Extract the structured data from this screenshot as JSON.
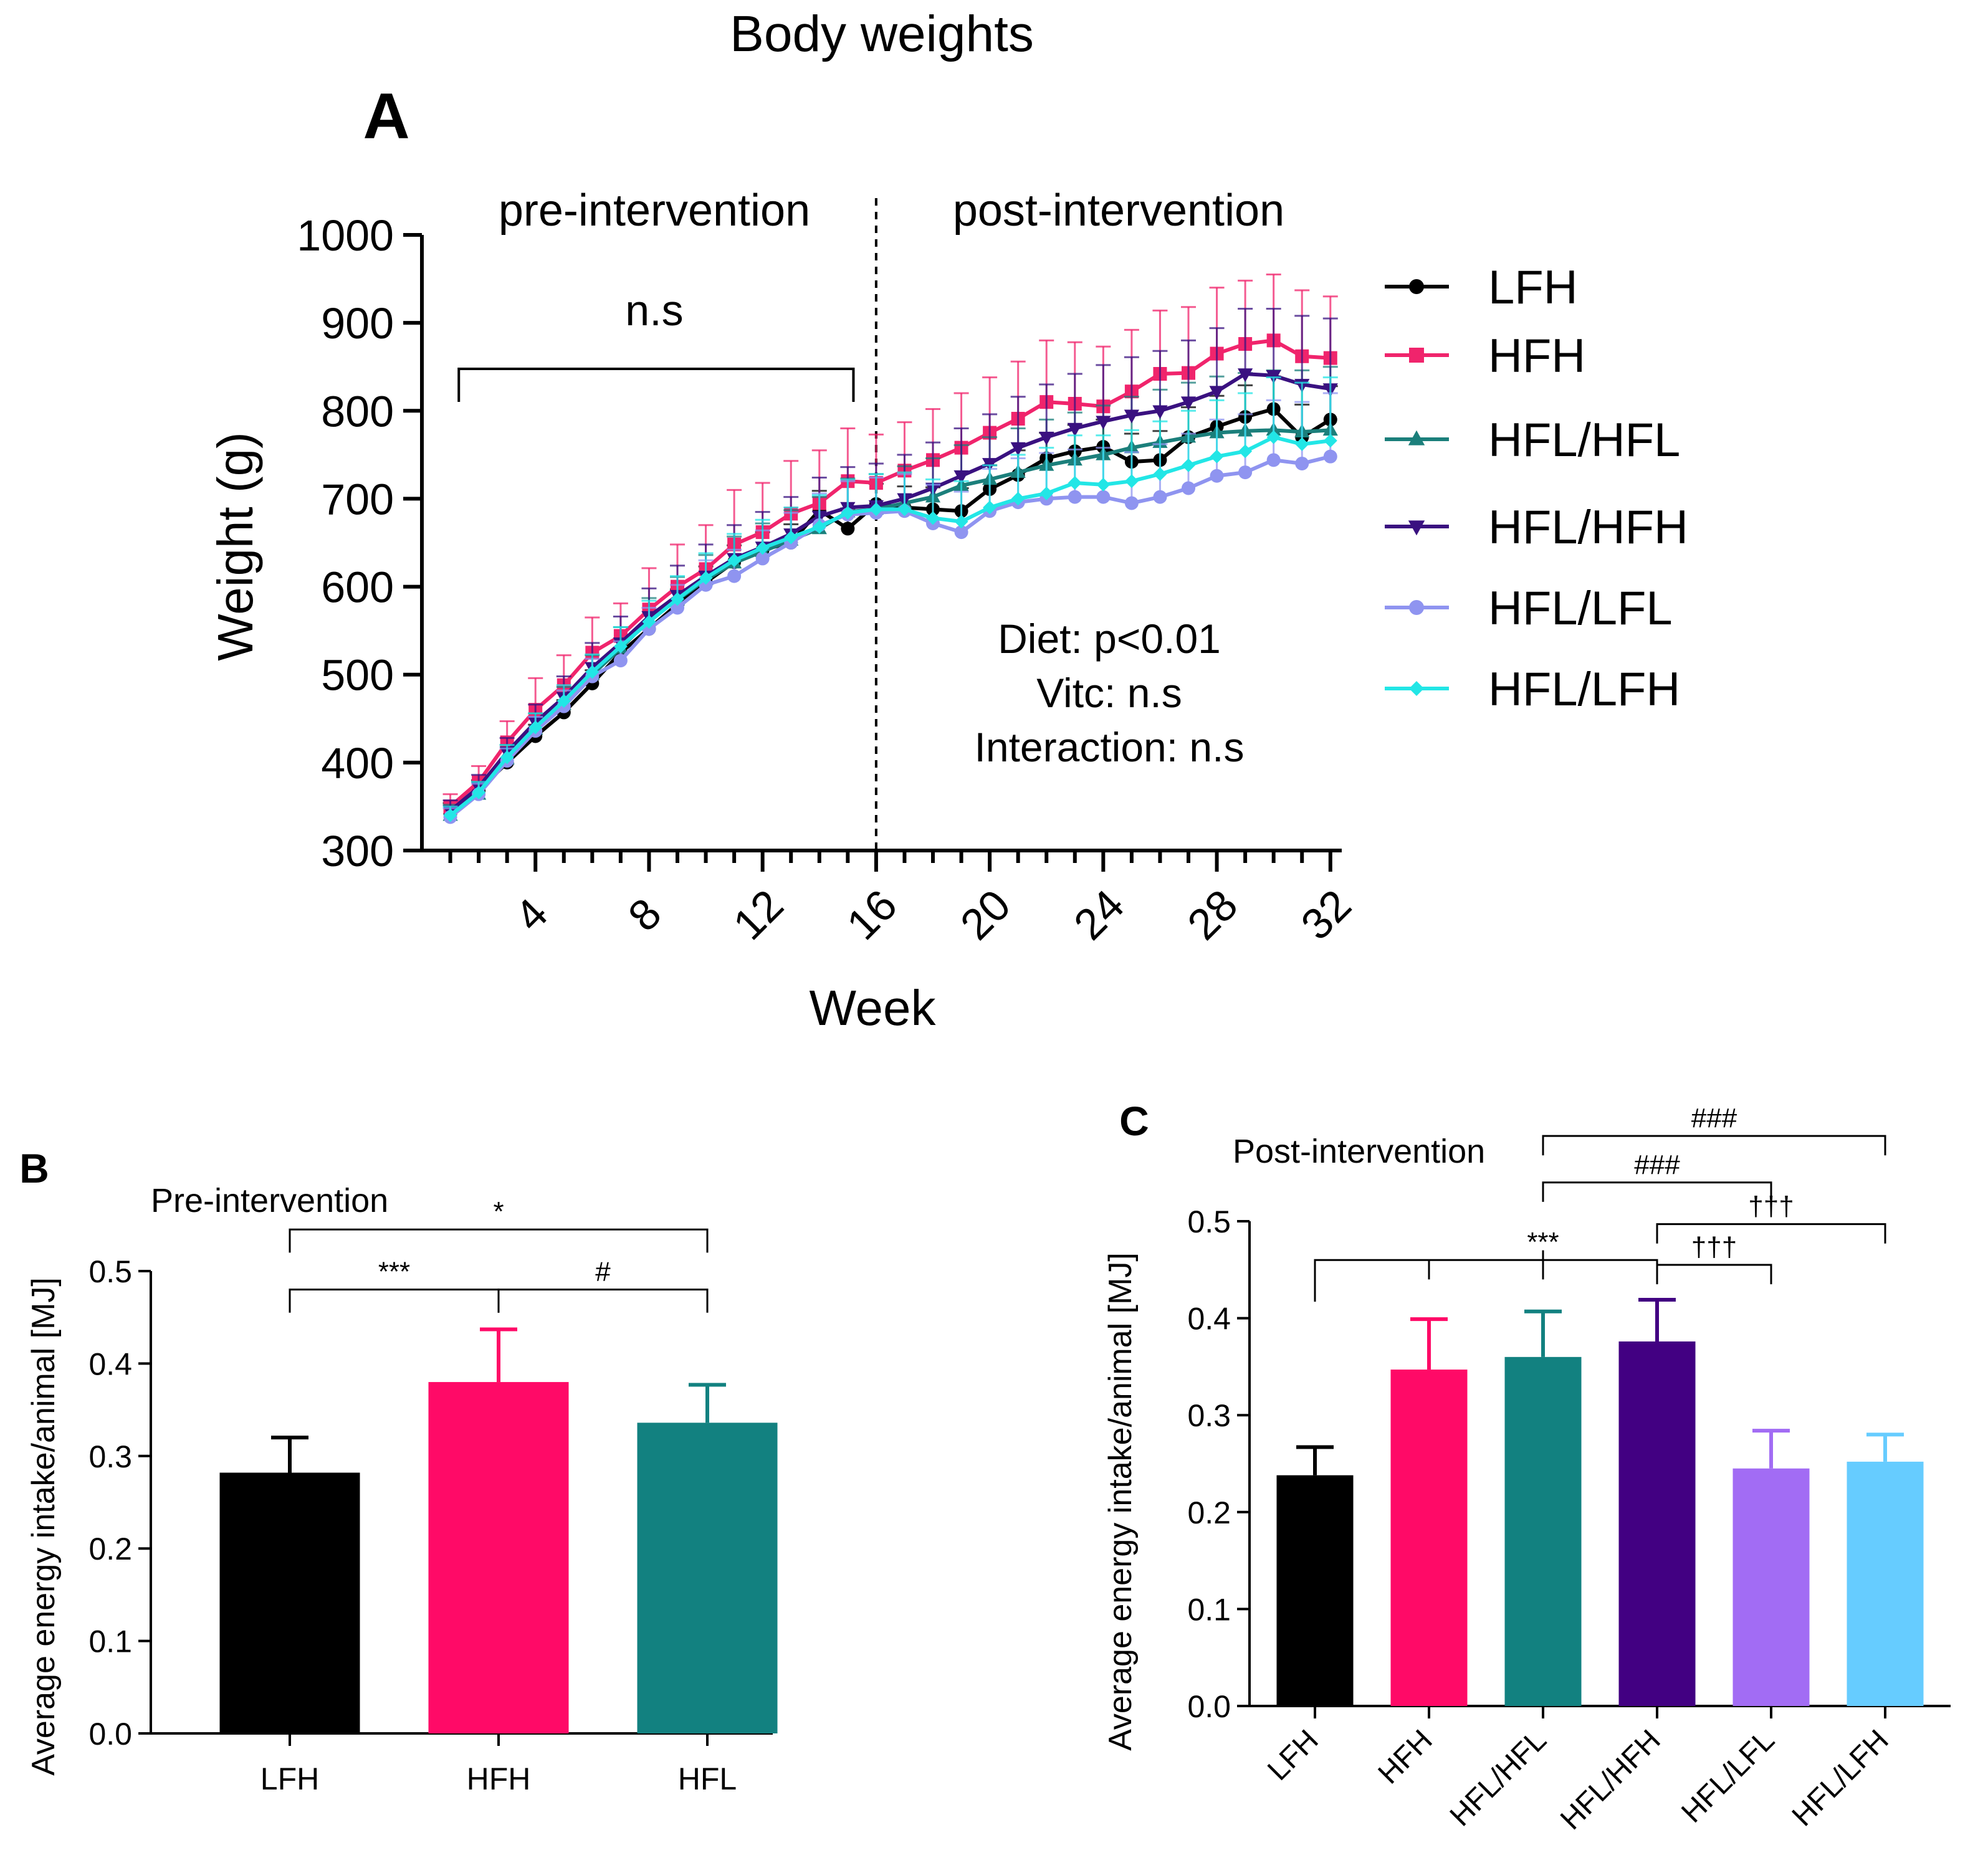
{
  "figure": {
    "title": "Body weights",
    "colors": {
      "LFH": "#000000",
      "HFH": "#F0246C",
      "HFL/HFL": "#1B7F7B",
      "HFL/HFH": "#3A1180",
      "HFL/LFL": "#8F94F0",
      "HFL/LFH": "#22E6E6"
    }
  },
  "chart_data": [
    {
      "id": "A",
      "panel_label": "A",
      "type": "line",
      "title": "Body weights",
      "xlabel": "Week",
      "ylabel": "Weight (g)",
      "xlim": [
        0,
        32.4
      ],
      "ylim": [
        300,
        1000
      ],
      "xticks": [
        4,
        8,
        12,
        16,
        20,
        24,
        28,
        32
      ],
      "yticks": [
        300,
        400,
        500,
        600,
        700,
        800,
        900,
        1000
      ],
      "divider_week": 16,
      "region_labels": [
        "pre-intervention",
        "post-intervention"
      ],
      "bracket_label": "n.s",
      "bracket_weeks": [
        1.3,
        15.2
      ],
      "stats_lines": [
        "Diet: p<0.01",
        "Vitc: n.s",
        "Interaction: n.s"
      ],
      "x": [
        1,
        2,
        3,
        4,
        5,
        6,
        7,
        8,
        9,
        10,
        11,
        12,
        13,
        14,
        15,
        16,
        17,
        18,
        19,
        20,
        21,
        22,
        23,
        24,
        25,
        26,
        27,
        28,
        29,
        30,
        31,
        32
      ],
      "series": [
        {
          "name": "LFH",
          "marker": "circle",
          "values": [
            342,
            368,
            400,
            430,
            457,
            490,
            525,
            552,
            580,
            605,
            628,
            642,
            650,
            687,
            666,
            694,
            690,
            688,
            686,
            711,
            727,
            746,
            754,
            759,
            742,
            744,
            770,
            782,
            793,
            802,
            770,
            790
          ],
          "errors": [
            12,
            12,
            13,
            13,
            14,
            15,
            15,
            16,
            17,
            18,
            19,
            20,
            21,
            22,
            23,
            23,
            24,
            25,
            26,
            27,
            28,
            29,
            30,
            31,
            32,
            33,
            34,
            35,
            36,
            37,
            37,
            38
          ]
        },
        {
          "name": "HFH",
          "marker": "square",
          "values": [
            350,
            378,
            423,
            460,
            488,
            525,
            544,
            574,
            600,
            620,
            648,
            662,
            683,
            695,
            720,
            718,
            732,
            744,
            758,
            775,
            791,
            810,
            808,
            805,
            822,
            842,
            843,
            865,
            876,
            880,
            862,
            860
          ],
          "errors": [
            14,
            18,
            24,
            36,
            34,
            40,
            37,
            47,
            48,
            50,
            62,
            56,
            60,
            60,
            60,
            55,
            55,
            58,
            62,
            63,
            65,
            70,
            70,
            68,
            70,
            72,
            75,
            75,
            72,
            75,
            75,
            70
          ]
        },
        {
          "name": "HFL/HFL",
          "marker": "triangle-up",
          "values": [
            340,
            364,
            404,
            438,
            466,
            500,
            530,
            562,
            585,
            608,
            627,
            640,
            653,
            666,
            685,
            688,
            695,
            702,
            715,
            722,
            730,
            738,
            744,
            750,
            758,
            764,
            770,
            775,
            777,
            778,
            776,
            778
          ],
          "errors": [
            12,
            14,
            16,
            18,
            20,
            22,
            24,
            25,
            26,
            28,
            30,
            32,
            34,
            36,
            38,
            40,
            42,
            44,
            46,
            48,
            50,
            52,
            54,
            56,
            58,
            60,
            62,
            64,
            66,
            68,
            70,
            72
          ]
        },
        {
          "name": "HFL/HFH",
          "marker": "triangle-down",
          "values": [
            345,
            372,
            412,
            446,
            474,
            508,
            536,
            566,
            590,
            612,
            632,
            645,
            660,
            680,
            690,
            692,
            700,
            712,
            726,
            740,
            758,
            770,
            780,
            788,
            795,
            800,
            810,
            822,
            842,
            840,
            830,
            825
          ],
          "errors": [
            12,
            14,
            16,
            20,
            24,
            28,
            30,
            32,
            34,
            36,
            38,
            40,
            42,
            44,
            46,
            48,
            50,
            52,
            54,
            56,
            58,
            60,
            62,
            64,
            66,
            68,
            70,
            72,
            74,
            76,
            78,
            80
          ]
        },
        {
          "name": "HFL/LFL",
          "marker": "circle",
          "values": [
            338,
            364,
            402,
            436,
            464,
            498,
            516,
            552,
            576,
            602,
            612,
            632,
            650,
            670,
            682,
            684,
            686,
            672,
            662,
            686,
            696,
            700,
            702,
            702,
            695,
            702,
            712,
            726,
            730,
            744,
            740,
            748
          ],
          "errors": [
            10,
            12,
            14,
            16,
            18,
            20,
            22,
            24,
            26,
            28,
            30,
            32,
            34,
            36,
            38,
            40,
            42,
            44,
            46,
            48,
            50,
            52,
            54,
            56,
            58,
            60,
            62,
            64,
            66,
            68,
            70,
            72
          ]
        },
        {
          "name": "HFL/LFH",
          "marker": "diamond",
          "values": [
            340,
            366,
            406,
            440,
            470,
            503,
            532,
            560,
            586,
            610,
            630,
            644,
            656,
            668,
            684,
            688,
            688,
            678,
            674,
            690,
            700,
            706,
            718,
            716,
            720,
            728,
            738,
            748,
            754,
            770,
            762,
            766
          ],
          "errors": [
            10,
            12,
            14,
            16,
            18,
            20,
            22,
            24,
            26,
            28,
            30,
            32,
            34,
            36,
            38,
            40,
            42,
            44,
            46,
            48,
            50,
            52,
            54,
            56,
            58,
            60,
            62,
            64,
            66,
            68,
            70,
            72
          ]
        }
      ]
    },
    {
      "id": "B",
      "panel_label": "B",
      "type": "bar",
      "title": "Pre-intervention",
      "xlabel": "",
      "ylabel": "Average energy intake/animal  [MJ]",
      "ylim": [
        0,
        0.5
      ],
      "yticks": [
        "0.0",
        "0.1",
        "0.2",
        "0.3",
        "0.4",
        "0.5"
      ],
      "categories": [
        "LFH",
        "HFH",
        "HFL"
      ],
      "values": [
        0.282,
        0.38,
        0.336
      ],
      "errors": [
        0.038,
        0.057,
        0.041
      ],
      "bar_colors": [
        "#000000",
        "#FF0A67",
        "#128180"
      ],
      "significance": [
        {
          "from": 0,
          "to": 2,
          "label": "*",
          "y": 0.545
        },
        {
          "from": 0,
          "to": 1,
          "label": "***",
          "y": 0.48
        },
        {
          "from": 1,
          "to": 2,
          "label": "#",
          "y": 0.48
        }
      ]
    },
    {
      "id": "C",
      "panel_label": "C",
      "type": "bar",
      "title": "Post-intervention",
      "xlabel": "",
      "ylabel": "Average energy intake/animal  [MJ]",
      "ylim": [
        0,
        0.5
      ],
      "yticks": [
        "0.0",
        "0.1",
        "0.2",
        "0.3",
        "0.4",
        "0.5"
      ],
      "categories": [
        "LFH",
        "HFH",
        "HFL/HFL",
        "HFL/HFH",
        "HFL/LFL",
        "HFL/LFH"
      ],
      "values": [
        0.238,
        0.347,
        0.36,
        0.376,
        0.245,
        0.252
      ],
      "errors": [
        0.029,
        0.052,
        0.047,
        0.043,
        0.039,
        0.028
      ],
      "bar_colors": [
        "#000000",
        "#FF0A67",
        "#128180",
        "#420082",
        "#A26CF4",
        "#66CCFF"
      ],
      "significance": [
        {
          "from": 2,
          "to": 5,
          "label": "###",
          "y": 0.588,
          "type": "down"
        },
        {
          "from": 2,
          "to": 4,
          "label": "###",
          "y": 0.54,
          "type": "down"
        },
        {
          "from": 3,
          "to": 5,
          "label": "†††",
          "y": 0.497,
          "type": "down"
        },
        {
          "from": 3,
          "to": 4,
          "label": "†††",
          "y": 0.455,
          "type": "down"
        },
        {
          "from": 0,
          "to": 3,
          "label": "***",
          "y": 0.46,
          "type": "comb",
          "ticks": [
            1,
            2
          ]
        }
      ]
    }
  ]
}
